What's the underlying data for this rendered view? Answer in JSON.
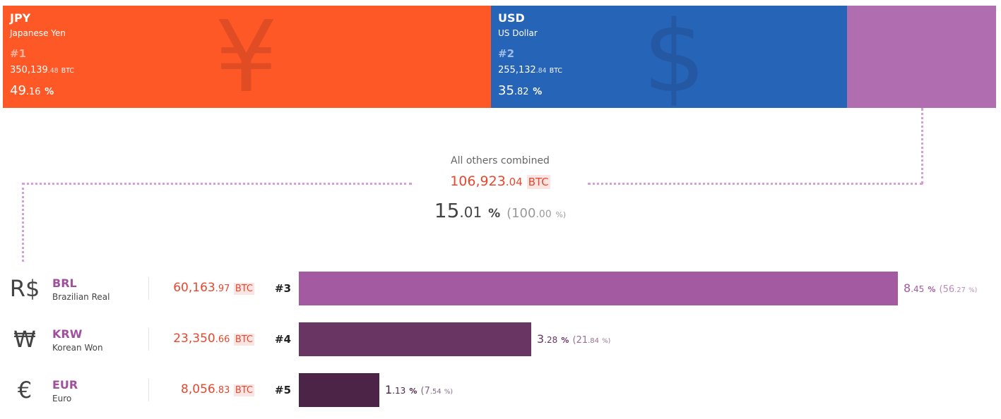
{
  "colors": {
    "jpy": "#fe5827",
    "jpy_symbol": "#e04c23",
    "jpy_rank": "#ffb19a",
    "usd": "#2664b8",
    "usd_symbol": "#2458a3",
    "usd_rank": "#9fbde6",
    "other": "#b06eb0",
    "brl": "#a35aa1",
    "krw": "#693563",
    "eur": "#4c2447",
    "dots": "#d39fd6",
    "btc_red": "#e8472e"
  },
  "top": [
    {
      "code": "JPY",
      "name": "Japanese Yen",
      "rank": "#1",
      "btc_int": "350,139",
      "btc_dec": ".48",
      "btc_unit": "BTC",
      "pct_int": "49",
      "pct_dec": ".16",
      "pct_unit": "%",
      "symbol": "¥"
    },
    {
      "code": "USD",
      "name": "US Dollar",
      "rank": "#2",
      "btc_int": "255,132",
      "btc_dec": ".84",
      "btc_unit": "BTC",
      "pct_int": "35",
      "pct_dec": ".82",
      "pct_unit": "%",
      "symbol": "$"
    }
  ],
  "others": {
    "label": "All others combined",
    "btc_int": "106,923",
    "btc_dec": ".04",
    "btc_unit": "BTC",
    "pct_int": "15",
    "pct_dec": ".01",
    "pct_unit": "%",
    "total_open": "(100",
    "total_dec": ".00",
    "total_unit": "%)"
  },
  "rows": [
    {
      "symbol": "R$",
      "code": "BRL",
      "name": "Brazilian Real",
      "btc_int": "60,163",
      "btc_dec": ".97",
      "btc_unit": "BTC",
      "rank": "#3",
      "pct_int": "8",
      "pct_dec": ".45",
      "pct_unit": "%",
      "rel_open": "(56",
      "rel_dec": ".27",
      "rel_unit": "%)"
    },
    {
      "symbol": "₩",
      "code": "KRW",
      "name": "Korean Won",
      "btc_int": "23,350",
      "btc_dec": ".66",
      "btc_unit": "BTC",
      "rank": "#4",
      "pct_int": "3",
      "pct_dec": ".28",
      "pct_unit": "%",
      "rel_open": "(21",
      "rel_dec": ".84",
      "rel_unit": "%)"
    },
    {
      "symbol": "€",
      "code": "EUR",
      "name": "Euro",
      "btc_int": "8,056",
      "btc_dec": ".83",
      "btc_unit": "BTC",
      "rank": "#5",
      "pct_int": "1",
      "pct_dec": ".13",
      "pct_unit": "%",
      "rel_open": "(7",
      "rel_dec": ".54",
      "rel_unit": "%)"
    }
  ],
  "chart_data": {
    "type": "bar",
    "unit": "BTC",
    "top_share": {
      "categories": [
        "JPY",
        "USD",
        "All others combined"
      ],
      "values_btc": [
        350139.48,
        255132.84,
        106923.04
      ],
      "percent": [
        49.16,
        35.82,
        15.01
      ]
    },
    "others_breakdown": {
      "categories": [
        "BRL",
        "KRW",
        "EUR"
      ],
      "values_btc": [
        60163.97,
        23350.66,
        8056.83
      ],
      "percent_of_total": [
        8.45,
        3.28,
        1.13
      ],
      "percent_of_others": [
        56.27,
        21.84,
        7.54
      ]
    }
  }
}
